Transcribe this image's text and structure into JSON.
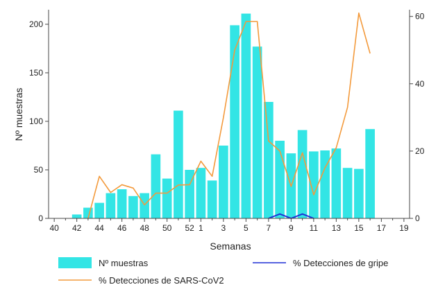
{
  "chart_data": {
    "type": "bar",
    "xlabel": "Semanas",
    "ylabel": "Nº muestras",
    "ylim": [
      0,
      215
    ],
    "y2lim": [
      0,
      62
    ],
    "yticks": [
      0,
      50,
      100,
      150,
      200
    ],
    "y2ticks": [
      0,
      20,
      40,
      60
    ],
    "weeks": [
      "40",
      "41",
      "42",
      "43",
      "44",
      "45",
      "46",
      "47",
      "48",
      "49",
      "50",
      "51",
      "52",
      "1",
      "2",
      "3",
      "4",
      "5",
      "6",
      "7",
      "8",
      "9",
      "10",
      "11",
      "12",
      "13",
      "14",
      "15",
      "16",
      "17",
      "18",
      "19"
    ],
    "xtick_labels": [
      "40",
      "42",
      "44",
      "46",
      "48",
      "50",
      "52",
      "1",
      "3",
      "5",
      "7",
      "9",
      "11",
      "13",
      "15",
      "17",
      "19"
    ],
    "series": [
      {
        "name": "Nº muestras",
        "type": "bar",
        "axis": "left",
        "color": "#33e5e5",
        "values": [
          0,
          0,
          4,
          11,
          16,
          26,
          30,
          23,
          26,
          66,
          41,
          111,
          50,
          52,
          39,
          75,
          199,
          211,
          177,
          120,
          80,
          67,
          91,
          69,
          70,
          72,
          52,
          51,
          92,
          0,
          0,
          0
        ]
      },
      {
        "name": "% Detecciones de gripe",
        "type": "line",
        "axis": "right",
        "color": "#1f2fd6",
        "values": [
          null,
          null,
          null,
          null,
          null,
          null,
          null,
          null,
          null,
          null,
          null,
          null,
          null,
          null,
          null,
          null,
          null,
          null,
          null,
          0,
          1.3,
          0,
          1.3,
          0,
          null,
          null,
          null,
          null,
          null,
          null,
          null,
          null
        ]
      },
      {
        "name": "% Detecciones de SARS-CoV2",
        "type": "line",
        "axis": "right",
        "color": "#f39a3c",
        "values": [
          null,
          null,
          null,
          0,
          12.5,
          7.7,
          10,
          9,
          4,
          7.5,
          7.5,
          9.9,
          10,
          17,
          12.5,
          30,
          50,
          58.5,
          58.5,
          23,
          20,
          9.5,
          19.5,
          7,
          15,
          21,
          33,
          61,
          49,
          null,
          null,
          null
        ]
      }
    ],
    "legend_position": "bottom"
  }
}
